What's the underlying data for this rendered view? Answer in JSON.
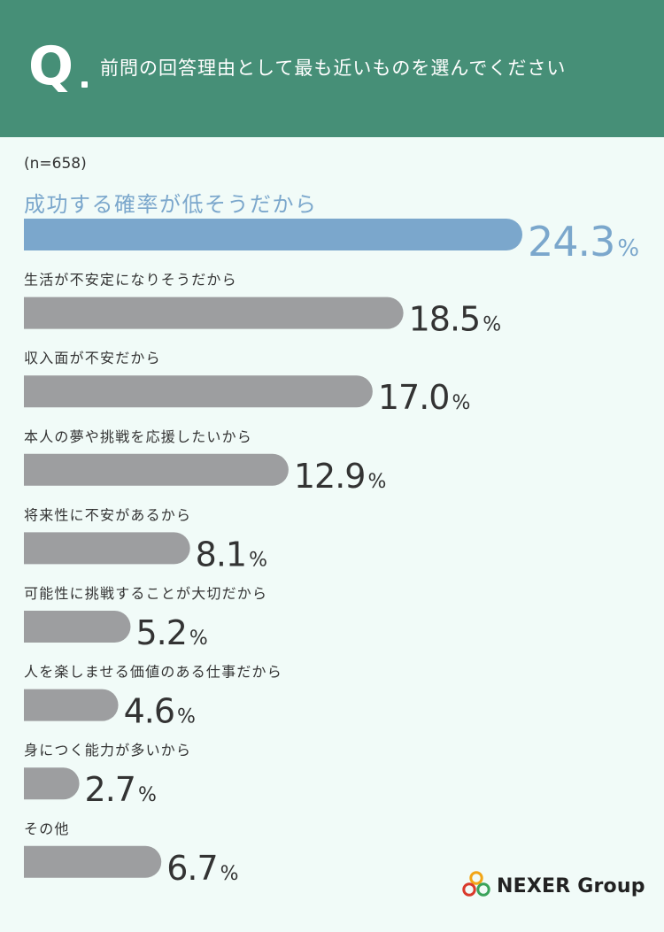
{
  "header": {
    "q_letter": "Q",
    "question": "前問の回答理由として最も近いものを選んでください"
  },
  "sample_size": "(n=658)",
  "chart_data": {
    "type": "bar",
    "orientation": "horizontal",
    "categories": [
      "成功する確率が低そうだから",
      "生活が不安定になりそうだから",
      "収入面が不安だから",
      "本人の夢や挑戦を応援したいから",
      "将来性に不安があるから",
      "可能性に挑戦することが大切だから",
      "人を楽しませる価値のある仕事だから",
      "身につく能力が多いから",
      "その他"
    ],
    "values": [
      24.3,
      18.5,
      17.0,
      12.9,
      8.1,
      5.2,
      4.6,
      2.7,
      6.7
    ],
    "value_labels": [
      "24.3",
      "18.5",
      "17.0",
      "12.9",
      "8.1",
      "5.2",
      "4.6",
      "2.7",
      "6.7"
    ],
    "unit": "%",
    "highlight_index": 0,
    "colors": {
      "highlight": "#7ba7cc",
      "default": "#9d9ea0",
      "highlight_label": "#7ba7cc",
      "default_label": "#333333"
    }
  },
  "logo": {
    "text": "NEXER Group",
    "icon": "nexer-rings-logo-icon"
  },
  "colors": {
    "header_bg": "#468f77",
    "page_bg": "#f1fbf8"
  }
}
